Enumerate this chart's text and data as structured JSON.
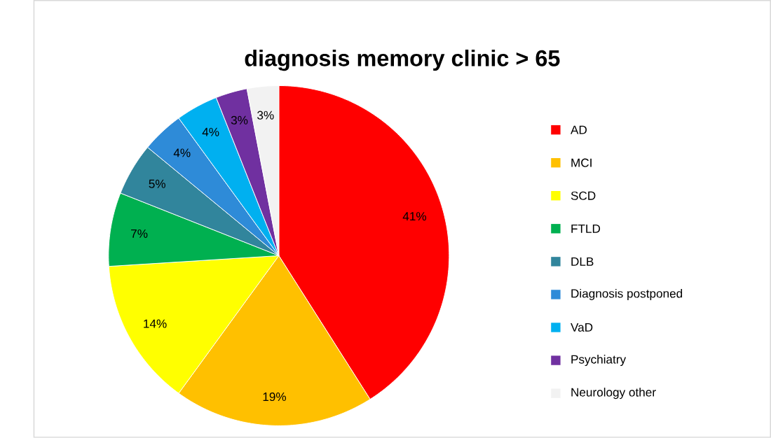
{
  "chart_data": {
    "type": "pie",
    "title": "diagnosis memory clinic > 65",
    "categories": [
      "AD",
      "MCI",
      "SCD",
      "FTLD",
      "DLB",
      "Diagnosis postponed",
      "VaD",
      "Psychiatry",
      "Neurology other"
    ],
    "values": [
      41,
      19,
      14,
      7,
      5,
      4,
      4,
      3,
      3
    ],
    "colors": [
      "#ff0000",
      "#ffc000",
      "#ffff00",
      "#00b050",
      "#31859c",
      "#2e8bd8",
      "#00b0f0",
      "#7030a0",
      "#f2f2f2"
    ],
    "value_labels": [
      "41%",
      "19%",
      "14%",
      "7%",
      "5%",
      "4%",
      "4%",
      "3%",
      "3%"
    ],
    "legend": "right"
  }
}
